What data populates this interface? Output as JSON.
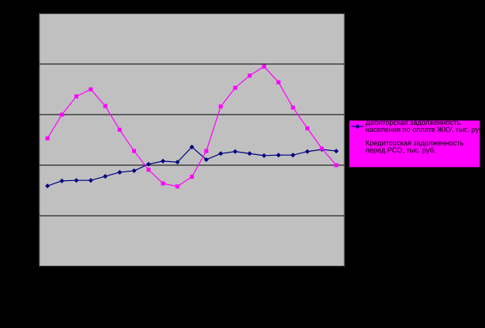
{
  "chart_data": {
    "type": "line",
    "categories": [
      null,
      null,
      null,
      null,
      null,
      null,
      null,
      null,
      null,
      null,
      null,
      null,
      null,
      null,
      null,
      null,
      null,
      null,
      null,
      null,
      null
    ],
    "series": [
      {
        "name": "Дебиторская задолженность населения по оплате ЖКУ, тыс. руб.",
        "color": "#000080",
        "marker": "diamond",
        "values": [
          1.59,
          1.69,
          1.7,
          1.7,
          1.78,
          1.86,
          1.89,
          2.02,
          2.08,
          2.06,
          2.36,
          2.11,
          2.23,
          2.27,
          2.23,
          2.19,
          2.2,
          2.2,
          2.27,
          2.31,
          2.28
        ]
      },
      {
        "name": "Кредиторская задолженность перед РСО, тыс. руб.",
        "color": "#ff00ff",
        "marker": "square",
        "values": [
          2.53,
          3.0,
          3.36,
          3.5,
          3.17,
          2.7,
          2.28,
          1.91,
          1.64,
          1.58,
          1.77,
          2.28,
          3.16,
          3.53,
          3.77,
          3.95,
          3.64,
          3.14,
          2.73,
          2.33,
          2.0
        ]
      }
    ],
    "ylim": [
      0,
      5
    ],
    "yticks": [
      0,
      1,
      2,
      3,
      4,
      5
    ],
    "grid": true,
    "legend": "right"
  }
}
